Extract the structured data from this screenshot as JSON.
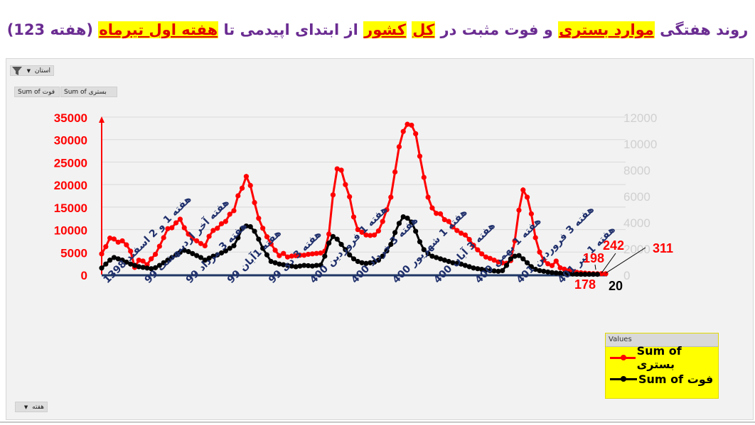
{
  "title": {
    "segments": [
      {
        "text": "روند هفتگی ",
        "highlight": false
      },
      {
        "text": "موارد بستری",
        "highlight": true
      },
      {
        "text": " و فوت مثبت در ",
        "highlight": false
      },
      {
        "text": "کل",
        "highlight": true
      },
      {
        "text": " ",
        "highlight": false
      },
      {
        "text": "کشور",
        "highlight": true
      },
      {
        "text": " از ابتدای اپیدمی تا ",
        "highlight": false
      },
      {
        "text": "هفته اول تیرماه",
        "highlight": true
      },
      {
        "text": " (هفته 123)",
        "highlight": false
      }
    ]
  },
  "pivot": {
    "filter_label": "استان",
    "field_buttons": [
      "Sum of فوت",
      "Sum of بستری"
    ],
    "axis_field_label": "هفته"
  },
  "colors": {
    "title": "#6a2c91",
    "title_highlight_bg": "#ffff00",
    "title_highlight_text": "#e00000",
    "series_hosp": "#ff0000",
    "series_death": "#000000",
    "left_axis": "#ff0000",
    "right_axis": "#d0d0d0",
    "x_labels": "#1f2f6b",
    "baseline": "#1f3864",
    "legend_bg": "#ffff00"
  },
  "legend": {
    "header": "Values",
    "items": [
      {
        "label": "Sum of بستری",
        "color": "#ff0000"
      },
      {
        "label": "Sum of فوت",
        "color": "#000000"
      }
    ]
  },
  "chart_data": {
    "type": "line",
    "title": "روند هفتگی موارد بستری و فوت مثبت در کل کشور از ابتدای اپیدمی تا هفته اول تیرماه (هفته 123)",
    "xlabel": "هفته",
    "ylabel_left": "Sum of بستری",
    "ylabel_right": "Sum of فوت",
    "ylim_left": [
      0,
      35000
    ],
    "yticks_left": [
      0,
      5000,
      10000,
      15000,
      20000,
      25000,
      30000,
      35000
    ],
    "ylim_right": [
      0,
      12000
    ],
    "yticks_right": [
      0,
      2000,
      4000,
      6000,
      8000,
      10000,
      12000
    ],
    "grid": true,
    "legend_position": "bottom-right",
    "x_tick_labels": [
      {
        "index": 0,
        "label": "هفته 1 و 2 اسفند 1398"
      },
      {
        "index": 10,
        "label": "هفته آخر اردیبهشت 99"
      },
      {
        "index": 20,
        "label": "هفته 3 مرداد 99"
      },
      {
        "index": 30,
        "label": "هفته 1آبان 99"
      },
      {
        "index": 40,
        "label": "هفته 3 دی 99"
      },
      {
        "index": 50,
        "label": "هفته 1 فروردین 400"
      },
      {
        "index": 60,
        "label": "هفته 3 خرداد 400"
      },
      {
        "index": 70,
        "label": "هفته 1 شهریور 400"
      },
      {
        "index": 80,
        "label": "هفته 3 آبان 400"
      },
      {
        "index": 90,
        "label": "هفته 1 بهمن 400"
      },
      {
        "index": 100,
        "label": "هفته 3 فروردین 401"
      },
      {
        "index": 110,
        "label": "هفته 1 تیر 401"
      }
    ],
    "annotations": [
      {
        "text": "178",
        "series": "hosp",
        "color": "#ff0000"
      },
      {
        "text": "198",
        "series": "hosp",
        "color": "#ff0000"
      },
      {
        "text": "242",
        "series": "hosp",
        "color": "#ff0000"
      },
      {
        "text": "311",
        "series": "hosp",
        "color": "#ff0000"
      },
      {
        "text": "20",
        "series": "death",
        "color": "#000000"
      }
    ],
    "series": [
      {
        "name": "Sum of بستری",
        "axis": "left",
        "color": "#ff0000",
        "values": [
          4600,
          6200,
          8100,
          7900,
          7200,
          7500,
          6600,
          5200,
          1600,
          3200,
          3000,
          2200,
          3500,
          4500,
          6300,
          8200,
          10200,
          10400,
          11500,
          12300,
          10400,
          9000,
          8000,
          7500,
          6900,
          6400,
          8500,
          9800,
          10300,
          11300,
          11800,
          13400,
          14200,
          17500,
          19200,
          21800,
          19800,
          16000,
          12500,
          10300,
          8400,
          6800,
          5400,
          4200,
          4700,
          3900,
          4100,
          4200,
          4300,
          4300,
          4500,
          4600,
          4700,
          4800,
          5200,
          9000,
          17700,
          23500,
          23200,
          20000,
          17300,
          12800,
          10000,
          9400,
          8800,
          8700,
          8800,
          9700,
          11800,
          14400,
          17200,
          22800,
          28400,
          31800,
          33400,
          33200,
          31300,
          26300,
          21600,
          17200,
          14800,
          13600,
          13500,
          12200,
          11800,
          10600,
          9800,
          9200,
          8800,
          7800,
          6500,
          5500,
          4600,
          3900,
          3600,
          3200,
          2800,
          2600,
          2500,
          3100,
          7500,
          14300,
          18800,
          17200,
          13500,
          8200,
          5000,
          3200,
          2400,
          2000,
          3000,
          1500,
          1200,
          900,
          700,
          500,
          400,
          311,
          242,
          198,
          178,
          200,
          180
        ]
      },
      {
        "name": "Sum of فوت",
        "axis": "right",
        "color": "#000000",
        "values": [
          500,
          800,
          1100,
          1300,
          1200,
          1100,
          950,
          800,
          700,
          600,
          550,
          500,
          450,
          520,
          700,
          900,
          1100,
          1300,
          1500,
          1700,
          1850,
          1750,
          1600,
          1450,
          1300,
          1100,
          1250,
          1400,
          1500,
          1650,
          1800,
          2000,
          2200,
          2800,
          3500,
          3700,
          3650,
          3300,
          2700,
          2000,
          1500,
          1000,
          900,
          800,
          750,
          700,
          650,
          600,
          650,
          700,
          680,
          650,
          700,
          720,
          1400,
          2400,
          2900,
          2700,
          2300,
          1900,
          1500,
          1200,
          1000,
          900,
          850,
          900,
          950,
          1100,
          1400,
          1800,
          2300,
          3200,
          3900,
          4400,
          4300,
          4000,
          3300,
          2500,
          1900,
          1600,
          1400,
          1300,
          1200,
          1100,
          1000,
          900,
          850,
          800,
          700,
          600,
          500,
          450,
          400,
          350,
          300,
          280,
          250,
          300,
          700,
          1200,
          1400,
          1450,
          1200,
          900,
          600,
          400,
          300,
          250,
          200,
          150,
          120,
          100,
          80,
          60,
          40,
          30,
          25,
          22,
          20,
          20,
          20
        ]
      }
    ]
  }
}
